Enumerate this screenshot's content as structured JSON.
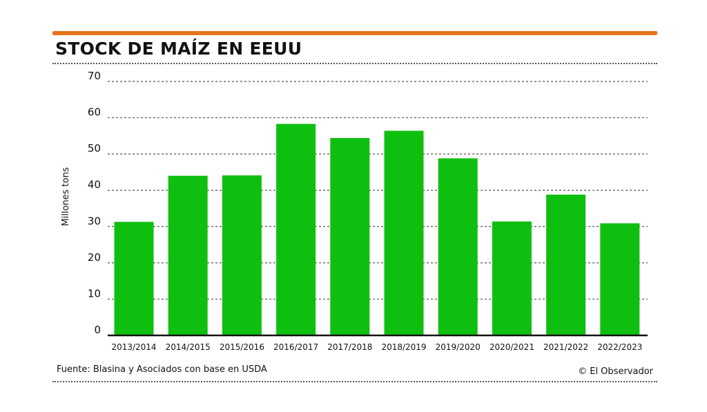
{
  "header": {
    "title": "STOCK DE MAÍZ EN EEUU"
  },
  "footer": {
    "source": "Fuente: Blasina y Asociados con base en USDA",
    "credit": "© El Observador"
  },
  "colors": {
    "accent": "#e8731e",
    "bar": "#0fbf0f",
    "text": "#111111",
    "grid": "#555555"
  },
  "chart_data": {
    "type": "bar",
    "title": "STOCK DE MAÍZ EN EEUU",
    "xlabel": "",
    "ylabel": "Millones tons",
    "categories": [
      "2013/2014",
      "2014/2015",
      "2015/2016",
      "2016/2017",
      "2017/2018",
      "2018/2019",
      "2019/2020",
      "2020/2021",
      "2021/2022",
      "2022/2023"
    ],
    "values": [
      31.3,
      44.0,
      44.1,
      58.3,
      54.4,
      56.4,
      48.8,
      31.4,
      38.8,
      30.9
    ],
    "ylim": [
      0,
      70
    ],
    "yticks": [
      0,
      10,
      20,
      30,
      40,
      50,
      60,
      70
    ],
    "grid": true,
    "legend": "none"
  }
}
